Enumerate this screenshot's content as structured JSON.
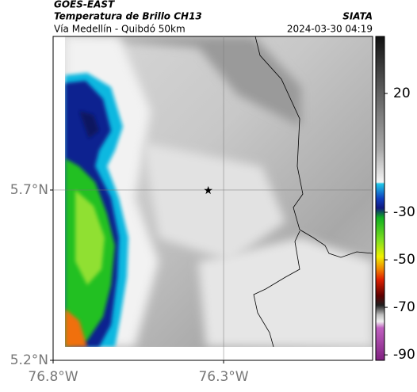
{
  "chart_data": {
    "type": "map",
    "title": "GOES-EAST",
    "subtitle": "Temperatura de Brillo CH13",
    "source": "SIATA",
    "region": "Vía Medellín - Quibdó 50km",
    "timestamp": "2024-03-30 04:19",
    "xlim": [
      -76.8,
      -75.863
    ],
    "xticks": [
      {
        "value": -76.8,
        "label": "76.8°W"
      },
      {
        "value": -76.3,
        "label": "76.3°W"
      }
    ],
    "ylim": [
      5.2,
      6.151
    ],
    "yticks": [
      {
        "value": 5.2,
        "label": "5.2°N"
      },
      {
        "value": 5.7,
        "label": "5.7°N"
      }
    ],
    "grid": true,
    "marker": {
      "x": -76.345,
      "y": 5.7
    },
    "colorbar": {
      "lim": [
        -92.3,
        44
      ],
      "ticks": [
        20,
        -30,
        -50,
        -70,
        -90
      ]
    }
  }
}
